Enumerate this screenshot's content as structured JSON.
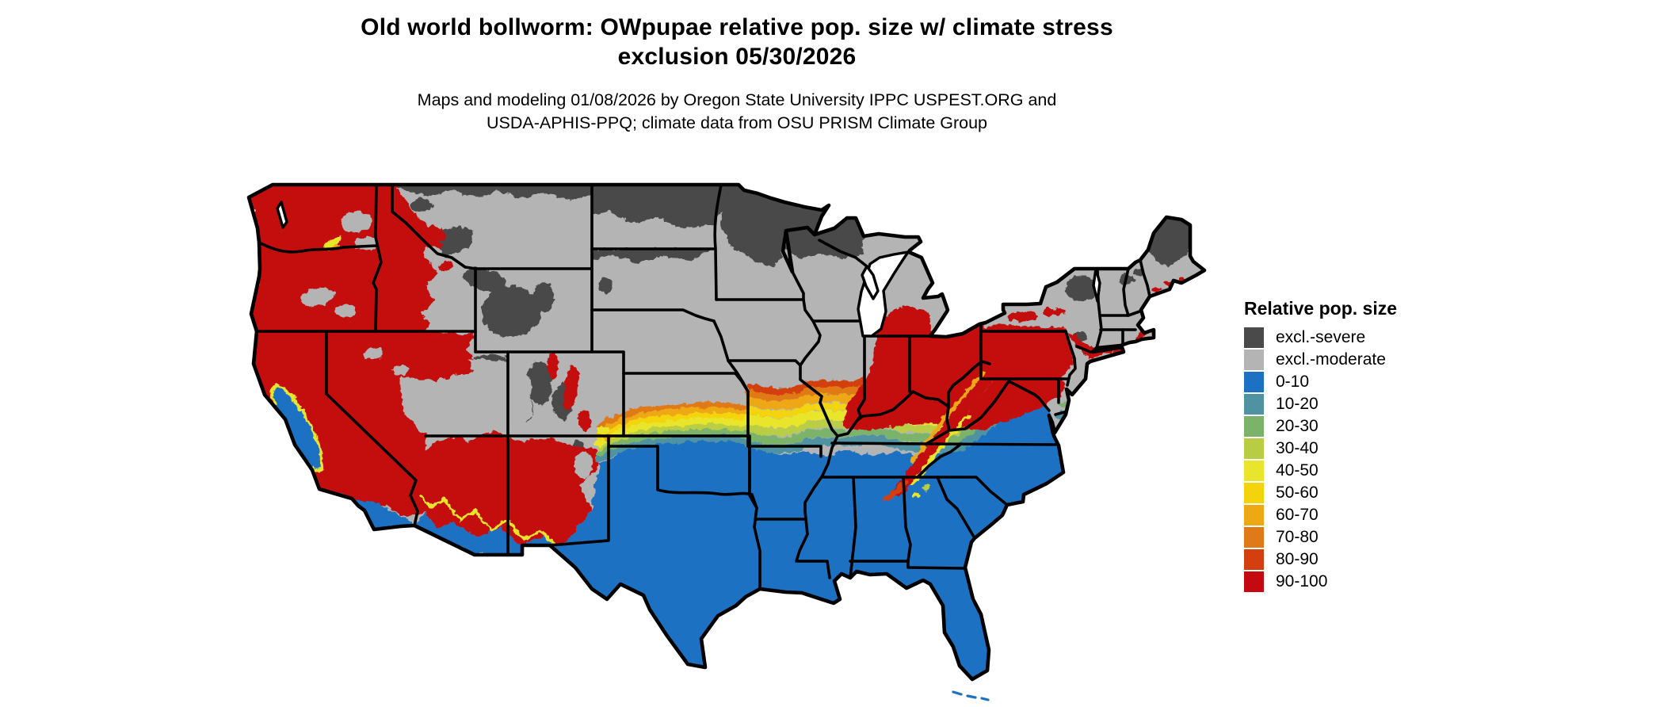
{
  "header": {
    "title_line1": "Old world bollworm: OWpupae relative pop. size w/ climate stress",
    "title_line2": "exclusion 05/30/2026",
    "subtitle_line1": "Maps and modeling 01/08/2026 by Oregon State University IPPC USPEST.ORG and",
    "subtitle_line2": "USDA-APHIS-PPQ; climate data from OSU PRISM Climate Group"
  },
  "palette": {
    "excl_severe": "#4a4a4a",
    "excl_moderate": "#b4b4b4",
    "b0": "#1d71c2",
    "b10": "#4f93a2",
    "b20": "#7bb36a",
    "b30": "#b9cd44",
    "b40": "#e8e52c",
    "b50": "#f3d40b",
    "b60": "#eea813",
    "b70": "#e07a19",
    "b80": "#d43f10",
    "b90": "#c40a10",
    "state_border": "#000000",
    "water": "#ffffff"
  },
  "legend": {
    "title": "Relative pop. size",
    "items": [
      {
        "label": "excl.-severe",
        "key": "excl_severe"
      },
      {
        "label": "excl.-moderate",
        "key": "excl_moderate"
      },
      {
        "label": "0-10",
        "key": "b0"
      },
      {
        "label": "10-20",
        "key": "b10"
      },
      {
        "label": "20-30",
        "key": "b20"
      },
      {
        "label": "30-40",
        "key": "b30"
      },
      {
        "label": "40-50",
        "key": "b40"
      },
      {
        "label": "50-60",
        "key": "b50"
      },
      {
        "label": "60-70",
        "key": "b60"
      },
      {
        "label": "70-80",
        "key": "b70"
      },
      {
        "label": "80-90",
        "key": "b80"
      },
      {
        "label": "90-100",
        "key": "b90"
      }
    ]
  },
  "map": {
    "kind": "choropleth raster map of contiguous United States with state borders",
    "regions": [
      {
        "area": "Northern tier: North Dakota, northern Minnesota, northern Wisconsin, western Upper Michigan, northern Montana strip, northern Maine, Adirondacks NY, high Rockies (WY/CO)",
        "value": "excl.-severe"
      },
      {
        "area": "Northern plains and interior: Montana, Wyoming, Colorado, Nebraska, South Dakota, Iowa, southern Minnesota/Wisconsin, northern Illinois, most of Michigan, upstate New York, northern New England",
        "value": "excl.-moderate"
      },
      {
        "area": "Pacific West: Washington, Oregon, southern Idaho, Nevada, California mountains, western Utah, Arizona/New Mexico mountain belts, Colorado front ranges",
        "value": "90-100"
      },
      {
        "area": "Ohio Valley and Northeast corridor: Ohio, Indiana, southern Michigan, Pennsylvania, New Jersey, southern New York, Connecticut, Rhode Island, eastern Massachusetts",
        "value": "90-100"
      },
      {
        "area": "Appalachian ridge stripe from central Pennsylvania through WV/VA/NC to north Georgia",
        "value": "80-100"
      },
      {
        "area": "South: Texas, Oklahoma, Arkansas, Louisiana, Mississippi, Alabama, Georgia, Florida, South Carolina, eastern North Carolina, Tennessee, eastern Virginia, southern California/Arizona/New Mexico, California Central Valley",
        "value": "0-10"
      },
      {
        "area": "Central transition band through Kansas, Missouri, southern Illinois/Indiana, Kentucky, western Virginia (south to north)",
        "value": "10-20 through 80-90 gradient"
      }
    ]
  }
}
